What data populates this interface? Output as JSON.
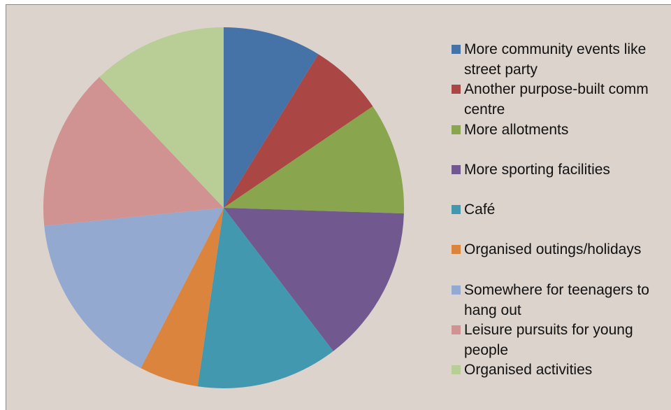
{
  "chart_data": {
    "type": "pie",
    "categories": [
      "More community events like street party",
      "Another purpose-built comm centre",
      "More allotments",
      "More sporting facilities",
      "Café",
      "Organised outings/holidays",
      "Somewhere for teenagers to hang out",
      "Leisure pursuits for young people",
      "Organised activities"
    ],
    "values": [
      8.8,
      6.7,
      10,
      14.1,
      12.7,
      5.3,
      15.8,
      14.5,
      12.1
    ],
    "colors": [
      "#4572a7",
      "#aa4643",
      "#89a54e",
      "#71588f",
      "#4198af",
      "#db843d",
      "#93a9cf",
      "#d19392",
      "#b9cd96"
    ],
    "legend": "right"
  }
}
